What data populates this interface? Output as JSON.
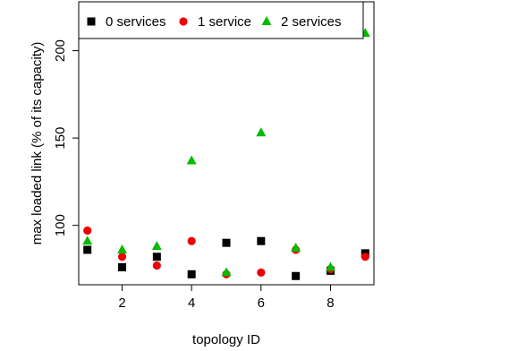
{
  "chart_data": {
    "type": "scatter",
    "xlabel": "topology ID",
    "ylabel": "max loaded link (% of its capacity)",
    "xlim": [
      0.75,
      9.25
    ],
    "ylim": [
      66,
      228
    ],
    "x_ticks": [
      2,
      4,
      6,
      8
    ],
    "y_ticks": [
      100,
      150,
      200
    ],
    "grid": false,
    "legend_position": "top-left",
    "series": [
      {
        "name": "0 services",
        "marker": "square",
        "color": "#000000",
        "points": [
          [
            1,
            86
          ],
          [
            2,
            76
          ],
          [
            3,
            82
          ],
          [
            4,
            72
          ],
          [
            5,
            90
          ],
          [
            6,
            91
          ],
          [
            7,
            71
          ],
          [
            8,
            74
          ],
          [
            9,
            84
          ]
        ]
      },
      {
        "name": "1 service",
        "marker": "circle",
        "color": "#ee0000",
        "points": [
          [
            1,
            97
          ],
          [
            2,
            82
          ],
          [
            3,
            77
          ],
          [
            4,
            91
          ],
          [
            5,
            72
          ],
          [
            6,
            73
          ],
          [
            7,
            86
          ],
          [
            8,
            75
          ],
          [
            9,
            82
          ]
        ]
      },
      {
        "name": "2 services",
        "marker": "triangle",
        "color": "#00bb00",
        "points": [
          [
            1,
            91
          ],
          [
            2,
            86
          ],
          [
            3,
            88
          ],
          [
            4,
            137
          ],
          [
            5,
            73
          ],
          [
            6,
            153
          ],
          [
            7,
            87
          ],
          [
            8,
            76
          ],
          [
            9,
            210
          ]
        ]
      }
    ]
  }
}
